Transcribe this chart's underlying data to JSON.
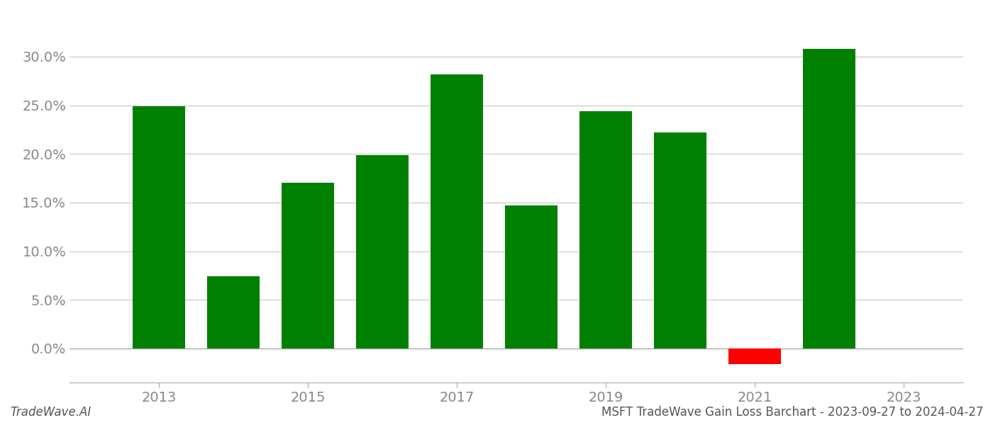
{
  "years": [
    2013,
    2014,
    2015,
    2016,
    2017,
    2018,
    2019,
    2020,
    2021,
    2022
  ],
  "values": [
    0.249,
    0.074,
    0.17,
    0.199,
    0.282,
    0.147,
    0.244,
    0.222,
    -0.016,
    0.308
  ],
  "colors": [
    "#008000",
    "#008000",
    "#008000",
    "#008000",
    "#008000",
    "#008000",
    "#008000",
    "#008000",
    "#ff0000",
    "#008000"
  ],
  "footer_left": "TradeWave.AI",
  "footer_right": "MSFT TradeWave Gain Loss Barchart - 2023-09-27 to 2024-04-27",
  "ylim_min": -0.035,
  "ylim_max": 0.345,
  "xlim_min": 2011.8,
  "xlim_max": 2023.8,
  "bar_width": 0.7,
  "background_color": "#ffffff",
  "grid_color": "#cccccc",
  "tick_color": "#888888",
  "footer_fontsize": 12,
  "ytick_labels": [
    "0.0%",
    "5.0%",
    "10.0%",
    "15.0%",
    "20.0%",
    "25.0%",
    "30.0%"
  ],
  "ytick_values": [
    0.0,
    0.05,
    0.1,
    0.15,
    0.2,
    0.25,
    0.3
  ],
  "xtick_values": [
    2013,
    2015,
    2017,
    2019,
    2021,
    2023
  ]
}
